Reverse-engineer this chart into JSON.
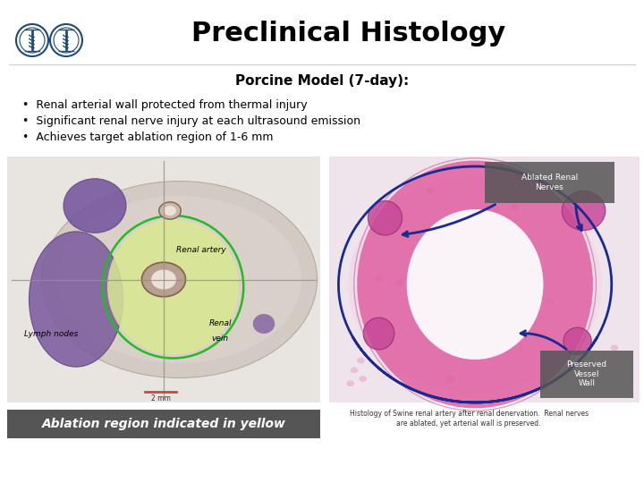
{
  "title": "Preclinical Histology",
  "subtitle": "Porcine Model (7-day):",
  "bullets": [
    "Renal arterial wall protected from thermal injury",
    "Significant renal nerve injury at each ultrasound emission",
    "Achieves target ablation region of 1-6 mm"
  ],
  "left_caption": "Ablation region indicated in yellow",
  "left_caption_bg": "#555555",
  "left_caption_color": "#ffffff",
  "right_annotation1": "Ablated Renal\nNerves",
  "right_annotation2": "Preserved\nVessel\nWall",
  "right_annotation_bg": "#555555",
  "right_annotation_color": "#ffffff",
  "right_subcaption": "Histology of Swine renal artery after renal denervation.  Renal nerves\nare ablated, yet arterial wall is preserved.",
  "left_label_renal_artery": "Renal artery",
  "left_label_lymph": "Lymph nodes",
  "left_label_vein": "Renal\nvein",
  "background_color": "#ffffff",
  "title_color": "#000000",
  "subtitle_color": "#000000",
  "bullet_color": "#000000",
  "logo_color": "#1a3a6b",
  "title_fontsize": 22,
  "subtitle_fontsize": 11,
  "bullet_fontsize": 9
}
